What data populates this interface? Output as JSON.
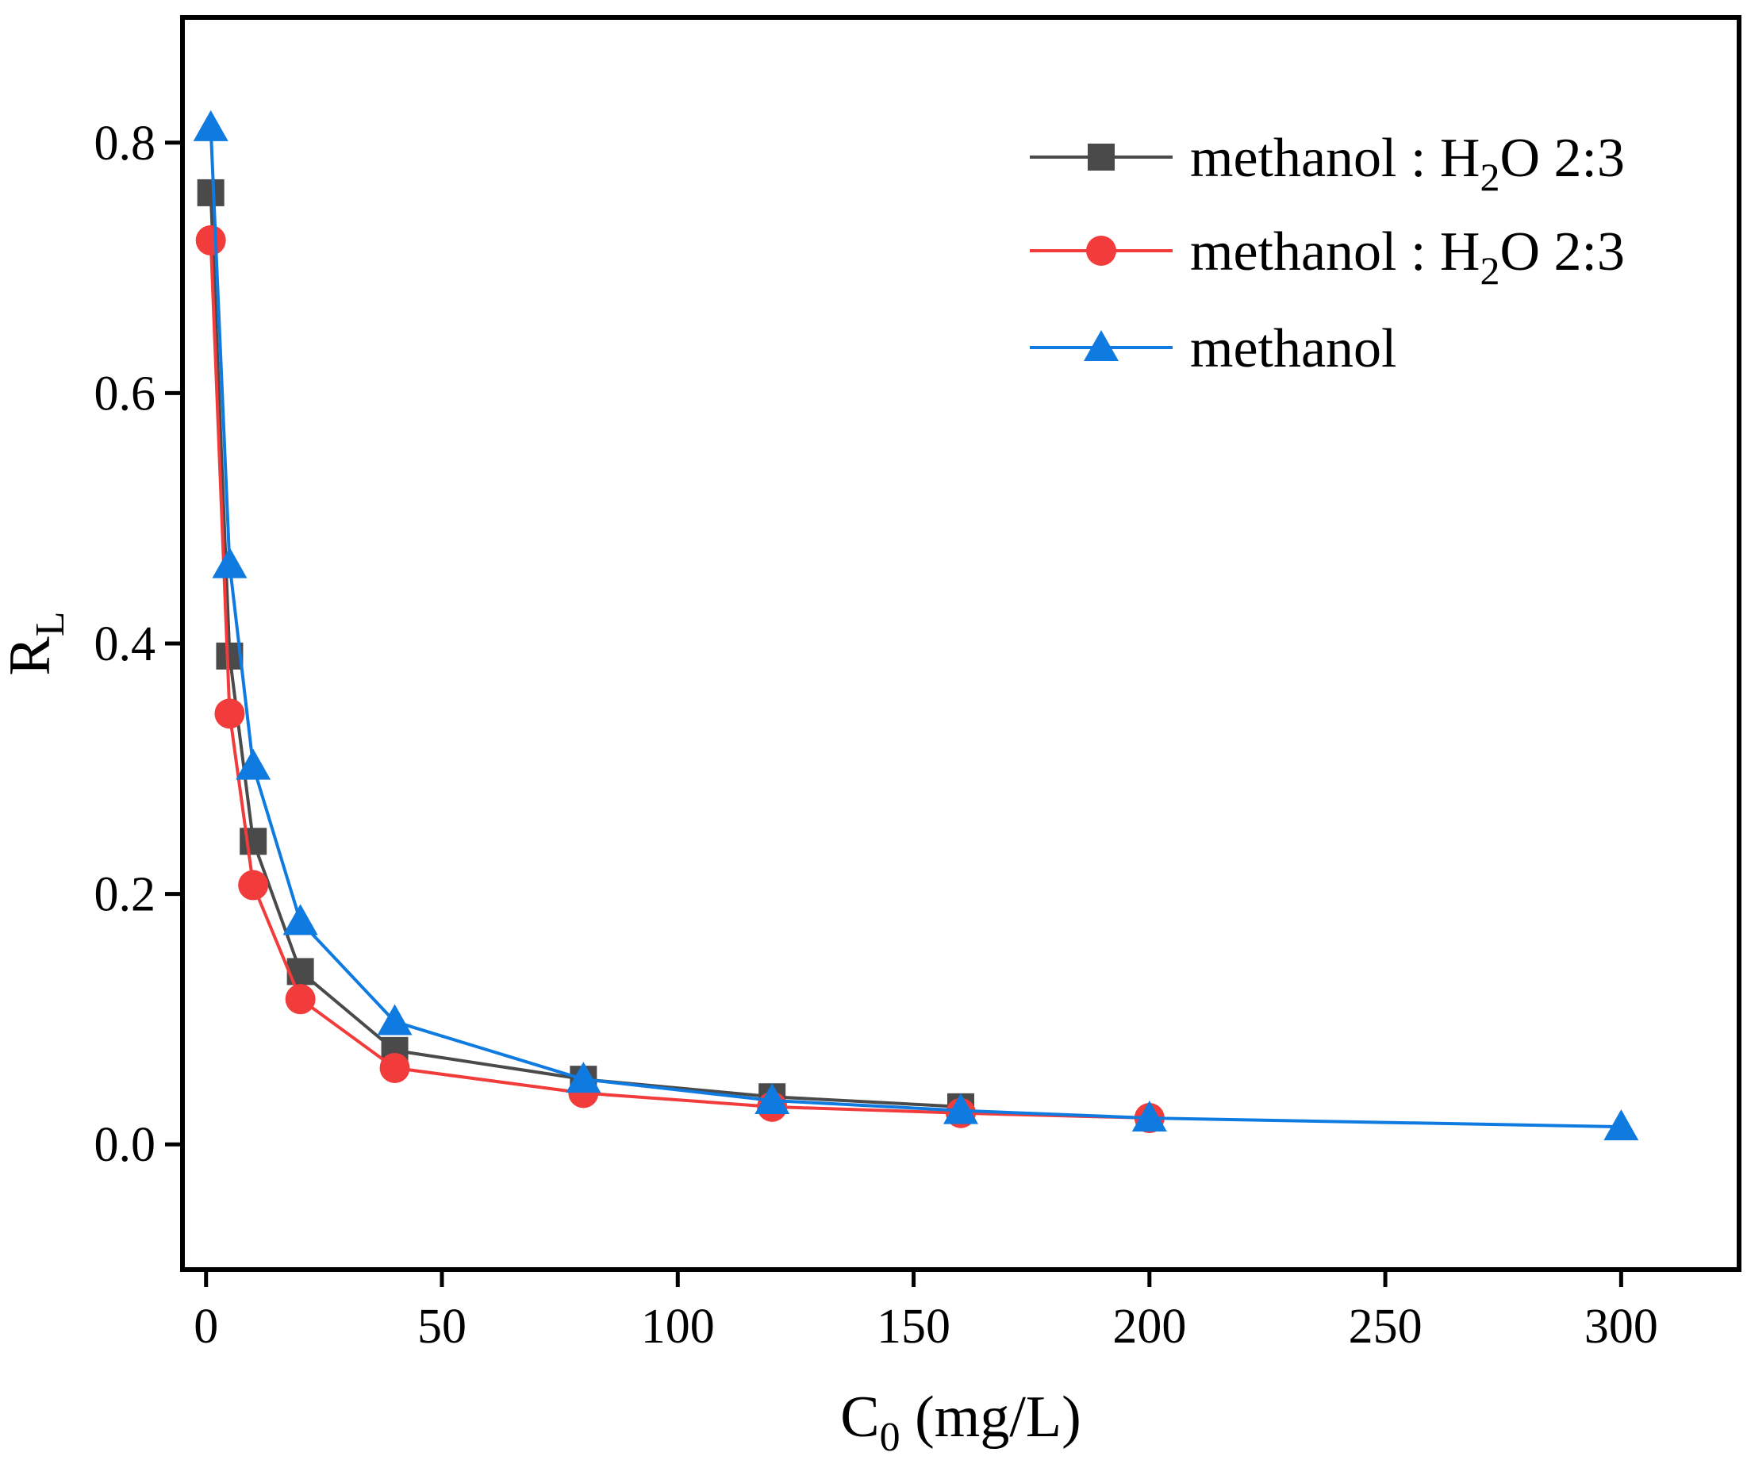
{
  "chart_data": {
    "type": "line",
    "title": "",
    "xlabel": "C",
    "xlabel_sub": "0",
    "xlabel_suffix": " (mg/L)",
    "ylabel": "R",
    "ylabel_sub": "L",
    "xlim": [
      -5,
      325
    ],
    "ylim": [
      -0.1,
      0.9
    ],
    "xticks": [
      0,
      50,
      100,
      150,
      200,
      250,
      300
    ],
    "yticks": [
      0.0,
      0.2,
      0.4,
      0.6,
      0.8
    ],
    "ytick_labels": [
      "0.0",
      "0.2",
      "0.4",
      "0.6",
      "0.8"
    ],
    "xtick_labels": [
      "0",
      "50",
      "100",
      "150",
      "200",
      "250",
      "300"
    ],
    "legend_position": "top-right",
    "series": [
      {
        "name": "methanol : H2O 2:3",
        "legend_main": "methanol : H",
        "legend_sub": "2",
        "legend_tail": "O 2:3",
        "color": "#4a4a4a",
        "marker": "square",
        "x": [
          1,
          5,
          10,
          20,
          40,
          80,
          120,
          160
        ],
        "y": [
          0.76,
          0.39,
          0.242,
          0.138,
          0.075,
          0.052,
          0.038,
          0.03
        ]
      },
      {
        "name": "methanol : H2O 2:3",
        "legend_main": "methanol : H",
        "legend_sub": "2",
        "legend_tail": "O 2:3",
        "color": "#f23b3b",
        "marker": "circle",
        "x": [
          1,
          5,
          10,
          20,
          40,
          80,
          120,
          160,
          200
        ],
        "y": [
          0.722,
          0.344,
          0.207,
          0.116,
          0.061,
          0.041,
          0.03,
          0.025,
          0.021
        ]
      },
      {
        "name": "methanol",
        "legend_main": "methanol",
        "legend_sub": "",
        "legend_tail": "",
        "color": "#0f7be0",
        "marker": "triangle",
        "x": [
          1,
          5,
          10,
          20,
          40,
          80,
          120,
          160,
          200,
          300
        ],
        "y": [
          0.812,
          0.463,
          0.302,
          0.178,
          0.098,
          0.052,
          0.035,
          0.027,
          0.021,
          0.014
        ]
      }
    ]
  }
}
